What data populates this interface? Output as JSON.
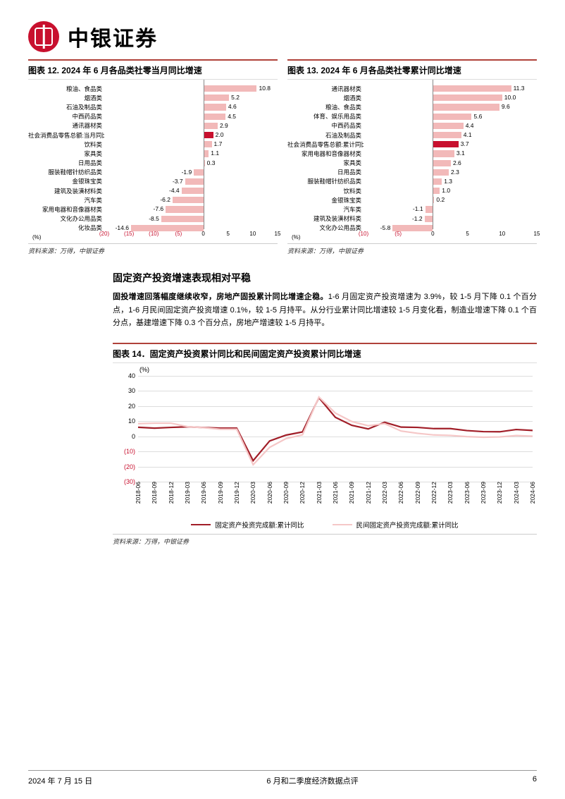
{
  "brand": {
    "name": "中银证券"
  },
  "chart12": {
    "title": "图表 12. 2024 年 6 月各品类社零当月同比增速",
    "type": "bar-horizontal",
    "xmin": -20,
    "xmax": 15,
    "xticks": [
      -20,
      -15,
      -10,
      -5,
      0,
      5,
      10,
      15
    ],
    "xtick_labels": [
      "(20)",
      "(15)",
      "(10)",
      "(5)",
      "0",
      "5",
      "10",
      "15"
    ],
    "unit": "(%)",
    "bar_color": "#f2b9b9",
    "highlight_color": "#c8102e",
    "items": [
      {
        "label": "粮油、食品类",
        "value": 10.8
      },
      {
        "label": "烟酒类",
        "value": 5.2
      },
      {
        "label": "石油及制品类",
        "value": 4.6
      },
      {
        "label": "中西药品类",
        "value": 4.5
      },
      {
        "label": "通讯器材类",
        "value": 2.9
      },
      {
        "label": "社会消费品零售总额:当月同比",
        "value": 2.0,
        "highlight": true
      },
      {
        "label": "饮料类",
        "value": 1.7
      },
      {
        "label": "家具类",
        "value": 1.1
      },
      {
        "label": "日用品类",
        "value": 0.3
      },
      {
        "label": "服装鞋帽针纺织品类",
        "value": -1.9
      },
      {
        "label": "金银珠宝类",
        "value": -3.7
      },
      {
        "label": "建筑及装潢材料类",
        "value": -4.4
      },
      {
        "label": "汽车类",
        "value": -6.2
      },
      {
        "label": "家用电器和音像器材类",
        "value": -7.6
      },
      {
        "label": "文化办公用品类",
        "value": -8.5
      },
      {
        "label": "化妆品类",
        "value": -14.6
      }
    ],
    "source": "资料来源：万得，中银证券"
  },
  "chart13": {
    "title": "图表 13. 2024 年 6 月各品类社零累计同比增速",
    "type": "bar-horizontal",
    "xmin": -10,
    "xmax": 15,
    "xticks": [
      -10,
      -5,
      0,
      5,
      10,
      15
    ],
    "xtick_labels": [
      "(10)",
      "(5)",
      "0",
      "5",
      "10",
      "15"
    ],
    "unit": "(%)",
    "bar_color": "#f2b9b9",
    "highlight_color": "#c8102e",
    "items": [
      {
        "label": "通讯器材类",
        "value": 11.3
      },
      {
        "label": "烟酒类",
        "value": 10.0
      },
      {
        "label": "粮油、食品类",
        "value": 9.6
      },
      {
        "label": "体育、娱乐用品类",
        "value": 5.6
      },
      {
        "label": "中西药品类",
        "value": 4.4
      },
      {
        "label": "石油及制品类",
        "value": 4.1
      },
      {
        "label": "社会消费品零售总额:累计同比",
        "value": 3.7,
        "highlight": true
      },
      {
        "label": "家用电器和音像器材类",
        "value": 3.1
      },
      {
        "label": "家具类",
        "value": 2.6
      },
      {
        "label": "日用品类",
        "value": 2.3
      },
      {
        "label": "服装鞋帽针纺织品类",
        "value": 1.3
      },
      {
        "label": "饮料类",
        "value": 1.0
      },
      {
        "label": "金银珠宝类",
        "value": 0.2
      },
      {
        "label": "汽车类",
        "value": -1.1
      },
      {
        "label": "建筑及装潢材料类",
        "value": -1.2
      },
      {
        "label": "文化办公用品类",
        "value": -5.8
      }
    ],
    "source": "资料来源：万得，中银证券"
  },
  "section": {
    "heading": "固定资产投资增速表现相对平稳",
    "body_bold": "固投增速回落幅度继续收窄，房地产固投累计同比增速企稳。",
    "body_rest": "1-6 月固定资产投资增速为 3.9%，较 1-5 月下降 0.1 个百分点，1-6 月民间固定资产投资增速 0.1%，较 1-5 月持平。从分行业累计同比增速较 1-5 月变化看，制造业增速下降 0.1 个百分点，基建增速下降 0.3 个百分点，房地产增速较 1-5 月持平。"
  },
  "chart14": {
    "title": "图表 14．固定资产投资累计同比和民间固定资产投资累计同比增速",
    "type": "line",
    "unit": "(%)",
    "ymin": -30,
    "ymax": 40,
    "ystep": 10,
    "yticks": [
      -30,
      -20,
      -10,
      0,
      10,
      20,
      30,
      40
    ],
    "ytick_labels": [
      "(30)",
      "(20)",
      "(10)",
      "0",
      "10",
      "20",
      "30",
      "40"
    ],
    "x_labels": [
      "2018-06",
      "2018-09",
      "2018-12",
      "2019-03",
      "2019-06",
      "2019-09",
      "2019-12",
      "2020-03",
      "2020-06",
      "2020-09",
      "2020-12",
      "2021-03",
      "2021-06",
      "2021-09",
      "2021-12",
      "2022-03",
      "2022-06",
      "2022-09",
      "2022-12",
      "2023-03",
      "2023-06",
      "2023-09",
      "2023-12",
      "2024-03",
      "2024-06"
    ],
    "series": [
      {
        "name": "固定资产投资完成额:累计同比",
        "color": "#a11e28",
        "width": 2.2,
        "values": [
          6.0,
          5.4,
          5.9,
          6.3,
          5.8,
          5.4,
          5.4,
          -16.1,
          -3.1,
          0.8,
          2.9,
          25.6,
          12.6,
          7.3,
          4.9,
          9.3,
          6.1,
          5.9,
          5.1,
          5.1,
          3.8,
          3.1,
          3.0,
          4.5,
          3.9
        ]
      },
      {
        "name": "民间固定资产投资完成额:累计同比",
        "color": "#f5c7c7",
        "width": 2.2,
        "values": [
          8.4,
          8.7,
          8.7,
          6.4,
          5.7,
          4.7,
          4.7,
          -18.8,
          -7.3,
          -1.5,
          1.0,
          26.0,
          15.4,
          9.8,
          7.0,
          8.4,
          3.5,
          2.0,
          0.9,
          0.6,
          -0.2,
          -0.6,
          -0.4,
          0.5,
          0.1
        ]
      }
    ],
    "legend": [
      "固定资产投资完成额:累计同比",
      "民间固定资产投资完成额:累计同比"
    ],
    "grid_color": "#dddddd",
    "source": "资料来源：万得，中银证券"
  },
  "footer": {
    "date": "2024 年 7 月 15 日",
    "doc_title": "6 月和二季度经济数据点评",
    "page": "6"
  }
}
